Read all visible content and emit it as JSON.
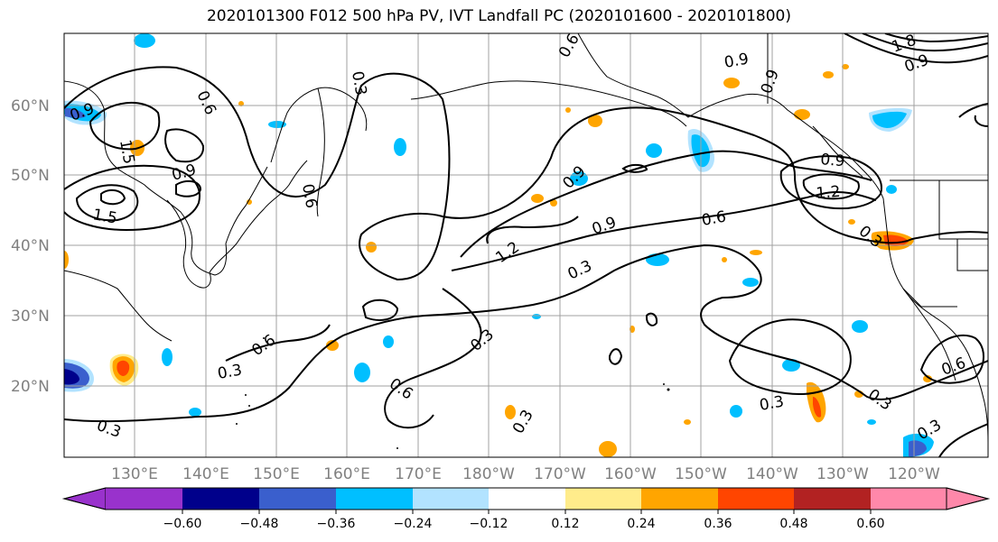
{
  "title": "2020101300 F012 500 hPa PV, IVT Landfall PC (2020101600 - 2020101800)",
  "lat_labels": [
    "60°N",
    "50°N",
    "40°N",
    "30°N",
    "20°N"
  ],
  "lon_labels": [
    "130°E",
    "140°E",
    "150°E",
    "160°E",
    "170°E",
    "180°W",
    "170°W",
    "160°W",
    "150°W",
    "140°W",
    "130°W",
    "120°W"
  ],
  "colorbar": {
    "ticks": [
      "−0.60",
      "−0.48",
      "−0.36",
      "−0.24",
      "−0.12",
      "0.12",
      "0.24",
      "0.36",
      "0.48",
      "0.60"
    ],
    "colors": [
      "#9932cc",
      "#00008b",
      "#3a5fcd",
      "#00bfff",
      "#b2e3ff",
      "#ffffff",
      "#ffec8b",
      "#ffa500",
      "#ff4500",
      "#b22222",
      "#ff88aa"
    ]
  },
  "contour_labels": [
    "0.9",
    "1.5",
    "0.9",
    "1.5",
    "0.6",
    "0.3",
    "0.6",
    "0.9",
    "0.9",
    "1.2",
    "1.2",
    "0.9",
    "0.6",
    "0.3",
    "0.6",
    "0.3",
    "0.3",
    "0.6",
    "0.3",
    "0.3",
    "0.3",
    "0.3",
    "0.3",
    "0.9",
    "0.6",
    "1.8",
    "0.9",
    "0.9",
    "0.6",
    "0.3"
  ],
  "map_colors": {
    "land": "#000000",
    "grid": "#a0a0a0",
    "contour": "#000000"
  }
}
